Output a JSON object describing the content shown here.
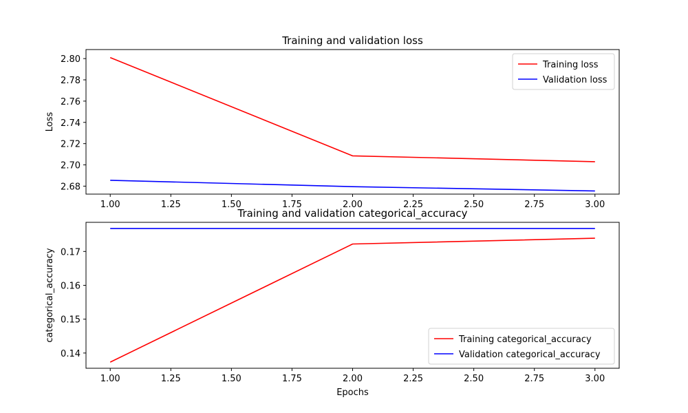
{
  "chart_data": [
    {
      "type": "line",
      "title": "Training and validation loss",
      "xlabel": "",
      "ylabel": "Loss",
      "x": [
        1,
        2,
        3
      ],
      "xlim": [
        0.9,
        3.1
      ],
      "ylim": [
        2.6725,
        2.8085
      ],
      "xticks": [
        1.0,
        1.25,
        1.5,
        1.75,
        2.0,
        2.25,
        2.5,
        2.75,
        3.0
      ],
      "xtick_labels": [
        "1.00",
        "1.25",
        "1.50",
        "1.75",
        "2.00",
        "2.25",
        "2.50",
        "2.75",
        "3.00"
      ],
      "yticks": [
        2.68,
        2.7,
        2.72,
        2.74,
        2.76,
        2.78,
        2.8
      ],
      "ytick_labels": [
        "2.68",
        "2.70",
        "2.72",
        "2.74",
        "2.76",
        "2.78",
        "2.80"
      ],
      "legend_position": "top-right",
      "grid": false,
      "series": [
        {
          "name": "Training loss",
          "color": "#ff0000",
          "values": [
            2.801,
            2.7085,
            2.703
          ]
        },
        {
          "name": "Validation loss",
          "color": "#0000ff",
          "values": [
            2.6855,
            2.6795,
            2.6755
          ]
        }
      ]
    },
    {
      "type": "line",
      "title": "Training and validation categorical_accuracy",
      "xlabel": "Epochs",
      "ylabel": "categorical_accuracy",
      "x": [
        1,
        2,
        3
      ],
      "xlim": [
        0.9,
        3.1
      ],
      "ylim": [
        0.1355,
        0.1786
      ],
      "xticks": [
        1.0,
        1.25,
        1.5,
        1.75,
        2.0,
        2.25,
        2.5,
        2.75,
        3.0
      ],
      "xtick_labels": [
        "1.00",
        "1.25",
        "1.50",
        "1.75",
        "2.00",
        "2.25",
        "2.50",
        "2.75",
        "3.00"
      ],
      "yticks": [
        0.14,
        0.15,
        0.16,
        0.17
      ],
      "ytick_labels": [
        "0.14",
        "0.15",
        "0.16",
        "0.17"
      ],
      "legend_position": "bottom-right",
      "grid": false,
      "series": [
        {
          "name": "Training categorical_accuracy",
          "color": "#ff0000",
          "values": [
            0.1373,
            0.1722,
            0.1739
          ]
        },
        {
          "name": "Validation categorical_accuracy",
          "color": "#0000ff",
          "values": [
            0.1768,
            0.1768,
            0.1768
          ]
        }
      ]
    }
  ]
}
